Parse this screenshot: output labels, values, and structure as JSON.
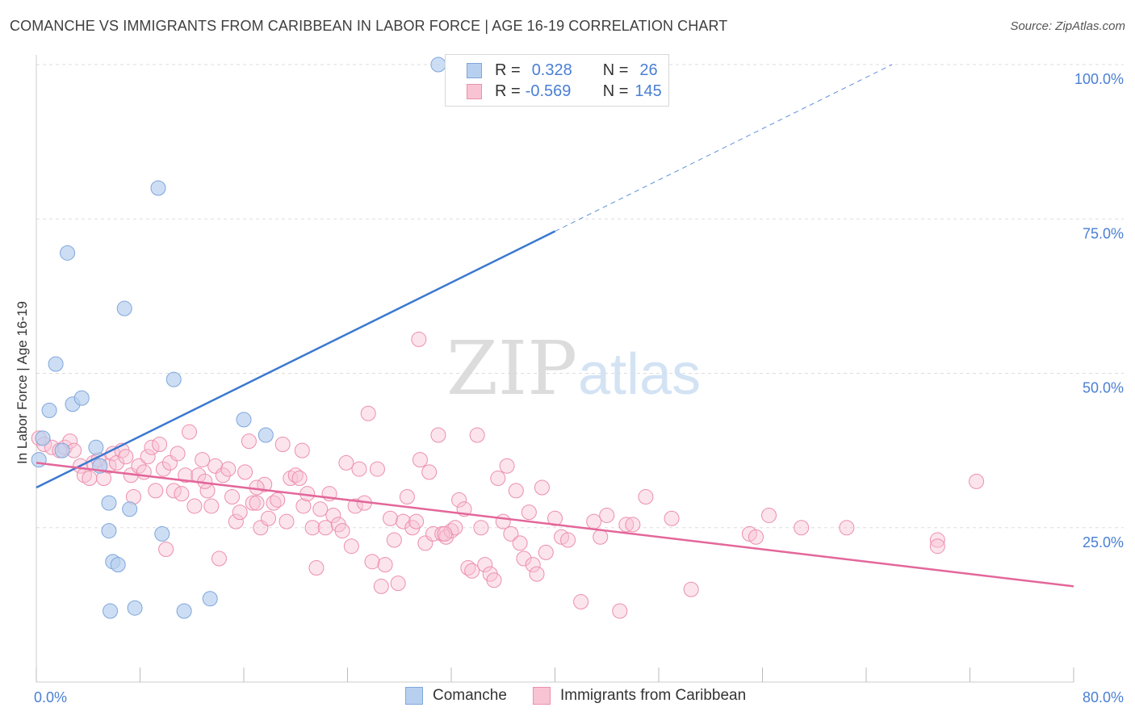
{
  "title": "COMANCHE VS IMMIGRANTS FROM CARIBBEAN IN LABOR FORCE | AGE 16-19 CORRELATION CHART",
  "source": "Source: ZipAtlas.com",
  "watermark": {
    "zip": "ZIP",
    "atlas": "atlas"
  },
  "colors": {
    "blue_fill": "#b8d0f0",
    "blue_stroke": "#7ea6dc",
    "blue_line": "#3a78d0",
    "pink_fill": "#f8c4d4",
    "pink_stroke": "#ec8fad",
    "pink_line": "#e3679a",
    "axis_text": "#4a7fd4",
    "grid": "#dddddd"
  },
  "legend": {
    "rows": [
      {
        "r_label": "R =",
        "r_value": "0.328",
        "n_label": "N =",
        "n_value": "26"
      },
      {
        "r_label": "R =",
        "r_value": "-0.569",
        "n_label": "N =",
        "n_value": "145"
      }
    ]
  },
  "bottom_legend": {
    "series1": "Comanche",
    "series2": "Immigrants from Caribbean"
  },
  "chart_data": {
    "type": "scatter",
    "xlabel": "",
    "ylabel": "In Labor Force | Age 16-19",
    "xlim": [
      0,
      80
    ],
    "ylim": [
      0,
      100
    ],
    "x_tick_labels": [
      "0.0%",
      "80.0%"
    ],
    "y_tick_labels": [
      "100.0%",
      "75.0%",
      "50.0%",
      "25.0%"
    ],
    "y_tick_values": [
      100,
      75,
      50,
      25
    ],
    "grid": true,
    "legend_position": "top-center",
    "series": [
      {
        "name": "Comanche",
        "color": "#b8d0f0",
        "points": [
          [
            0.2,
            36.0
          ],
          [
            0.5,
            39.5
          ],
          [
            1.0,
            44.0
          ],
          [
            1.5,
            51.5
          ],
          [
            2.4,
            69.5
          ],
          [
            2.8,
            45.0
          ],
          [
            3.5,
            46.0
          ],
          [
            4.6,
            38.0
          ],
          [
            4.9,
            35.0
          ],
          [
            5.7,
            11.5
          ],
          [
            6.8,
            60.5
          ],
          [
            5.6,
            24.5
          ],
          [
            5.6,
            29.0
          ],
          [
            5.9,
            19.5
          ],
          [
            6.3,
            19.0
          ],
          [
            7.2,
            28.0
          ],
          [
            7.6,
            12.0
          ],
          [
            9.4,
            80.0
          ],
          [
            9.7,
            24.0
          ],
          [
            10.6,
            49.0
          ],
          [
            11.4,
            11.5
          ],
          [
            13.4,
            13.5
          ],
          [
            16.0,
            42.5
          ],
          [
            17.7,
            40.0
          ],
          [
            31.0,
            100.0
          ],
          [
            2.0,
            37.5
          ]
        ],
        "trend": {
          "x0": 0,
          "y0": 31.5,
          "x1": 40.0,
          "y1": 73.0,
          "dash_to_x": 66.0,
          "dash_to_y": 100.0
        }
      },
      {
        "name": "Immigrants from Caribbean",
        "color": "#f8c4d4",
        "points": [
          [
            0.2,
            39.5
          ],
          [
            0.6,
            38.5
          ],
          [
            1.2,
            38.0
          ],
          [
            1.8,
            37.5
          ],
          [
            2.2,
            38.0
          ],
          [
            2.6,
            39.0
          ],
          [
            2.9,
            37.5
          ],
          [
            3.4,
            35.0
          ],
          [
            3.7,
            33.5
          ],
          [
            4.1,
            33.0
          ],
          [
            4.4,
            35.5
          ],
          [
            4.8,
            36.0
          ],
          [
            5.2,
            33.0
          ],
          [
            5.6,
            35.0
          ],
          [
            5.9,
            37.0
          ],
          [
            6.2,
            35.5
          ],
          [
            6.6,
            37.5
          ],
          [
            6.9,
            36.5
          ],
          [
            7.3,
            33.5
          ],
          [
            7.5,
            30.0
          ],
          [
            7.9,
            35.0
          ],
          [
            8.3,
            34.0
          ],
          [
            8.6,
            36.5
          ],
          [
            8.9,
            38.0
          ],
          [
            9.2,
            31.0
          ],
          [
            9.5,
            38.5
          ],
          [
            9.8,
            34.5
          ],
          [
            10.0,
            21.5
          ],
          [
            10.3,
            35.5
          ],
          [
            10.6,
            31.0
          ],
          [
            10.9,
            37.0
          ],
          [
            11.2,
            30.5
          ],
          [
            11.5,
            33.5
          ],
          [
            11.8,
            40.5
          ],
          [
            12.2,
            28.5
          ],
          [
            12.5,
            33.5
          ],
          [
            12.8,
            36.0
          ],
          [
            13.2,
            31.0
          ],
          [
            13.5,
            28.5
          ],
          [
            13.8,
            35.0
          ],
          [
            14.1,
            20.0
          ],
          [
            14.4,
            33.5
          ],
          [
            14.8,
            34.5
          ],
          [
            15.1,
            30.0
          ],
          [
            15.4,
            26.0
          ],
          [
            15.7,
            27.5
          ],
          [
            16.1,
            34.0
          ],
          [
            16.4,
            39.0
          ],
          [
            16.7,
            29.0
          ],
          [
            17.0,
            29.0
          ],
          [
            17.3,
            25.0
          ],
          [
            17.6,
            32.0
          ],
          [
            17.9,
            26.5
          ],
          [
            18.3,
            29.0
          ],
          [
            18.6,
            29.5
          ],
          [
            19.0,
            38.5
          ],
          [
            19.3,
            26.0
          ],
          [
            19.6,
            33.0
          ],
          [
            20.0,
            33.5
          ],
          [
            20.3,
            33.0
          ],
          [
            20.6,
            28.5
          ],
          [
            20.9,
            30.5
          ],
          [
            21.3,
            25.0
          ],
          [
            21.6,
            18.5
          ],
          [
            21.9,
            28.0
          ],
          [
            22.3,
            25.0
          ],
          [
            22.6,
            30.5
          ],
          [
            22.9,
            27.0
          ],
          [
            23.3,
            25.5
          ],
          [
            23.6,
            24.5
          ],
          [
            23.9,
            35.5
          ],
          [
            24.3,
            22.0
          ],
          [
            24.6,
            28.5
          ],
          [
            24.9,
            34.5
          ],
          [
            25.3,
            29.0
          ],
          [
            25.6,
            43.5
          ],
          [
            25.9,
            19.5
          ],
          [
            26.3,
            34.5
          ],
          [
            26.6,
            15.5
          ],
          [
            26.9,
            19.0
          ],
          [
            27.3,
            26.5
          ],
          [
            27.6,
            23.0
          ],
          [
            27.9,
            16.0
          ],
          [
            28.3,
            26.0
          ],
          [
            28.6,
            30.0
          ],
          [
            29.0,
            25.0
          ],
          [
            29.3,
            26.0
          ],
          [
            29.6,
            36.0
          ],
          [
            30.0,
            22.5
          ],
          [
            30.3,
            34.0
          ],
          [
            30.6,
            24.0
          ],
          [
            31.0,
            40.0
          ],
          [
            31.3,
            24.0
          ],
          [
            31.6,
            23.5
          ],
          [
            32.0,
            24.5
          ],
          [
            32.3,
            25.0
          ],
          [
            32.6,
            29.5
          ],
          [
            33.0,
            28.0
          ],
          [
            33.3,
            18.5
          ],
          [
            33.6,
            18.0
          ],
          [
            34.0,
            40.0
          ],
          [
            34.3,
            25.0
          ],
          [
            34.6,
            19.0
          ],
          [
            35.0,
            17.5
          ],
          [
            35.3,
            16.5
          ],
          [
            35.6,
            33.0
          ],
          [
            36.0,
            26.0
          ],
          [
            36.3,
            35.0
          ],
          [
            36.6,
            24.0
          ],
          [
            37.0,
            31.0
          ],
          [
            37.3,
            22.5
          ],
          [
            37.6,
            20.0
          ],
          [
            38.0,
            27.5
          ],
          [
            38.3,
            19.0
          ],
          [
            38.6,
            17.5
          ],
          [
            39.0,
            31.5
          ],
          [
            39.3,
            21.0
          ],
          [
            40.0,
            26.5
          ],
          [
            40.5,
            23.5
          ],
          [
            41.0,
            23.0
          ],
          [
            42.0,
            13.0
          ],
          [
            43.0,
            26.0
          ],
          [
            43.5,
            23.5
          ],
          [
            44.0,
            27.0
          ],
          [
            45.0,
            11.5
          ],
          [
            45.5,
            25.5
          ],
          [
            46.0,
            25.5
          ],
          [
            47.0,
            30.0
          ],
          [
            49.0,
            26.5
          ],
          [
            50.5,
            15.0
          ],
          [
            55.0,
            24.0
          ],
          [
            55.5,
            23.5
          ],
          [
            56.5,
            27.0
          ],
          [
            59.0,
            25.0
          ],
          [
            62.5,
            25.0
          ],
          [
            69.5,
            23.0
          ],
          [
            69.5,
            22.0
          ],
          [
            72.5,
            32.5
          ],
          [
            29.5,
            55.5
          ],
          [
            31.5,
            24.0
          ],
          [
            20.5,
            37.5
          ],
          [
            13.0,
            32.5
          ],
          [
            17.0,
            31.5
          ]
        ],
        "trend": {
          "x0": 0,
          "y0": 35.5,
          "x1": 80.0,
          "y1": 15.5
        }
      }
    ]
  }
}
